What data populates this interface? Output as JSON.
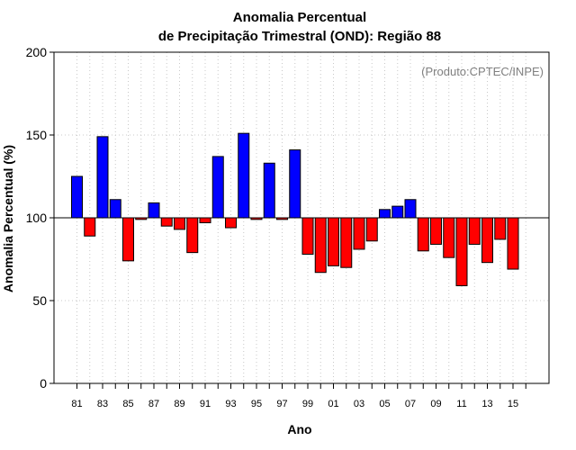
{
  "chart_data": {
    "type": "bar",
    "title_line1": "Anomalia Percentual",
    "title_line2": "de Precipitação Trimestral (OND): Região 88",
    "xlabel": "Ano",
    "ylabel": "Anomalia Percentual (%)",
    "credit": "(Produto:CPTEC/INPE)",
    "ylim": [
      0,
      200
    ],
    "yticks": [
      0,
      50,
      100,
      150,
      200
    ],
    "baseline": 100,
    "grid": true,
    "colors": {
      "above": "#0000ff",
      "below": "#ff0000",
      "edge": "#000000",
      "grid": "#c8c8c8"
    },
    "categories": [
      "81",
      "82",
      "83",
      "84",
      "85",
      "86",
      "87",
      "88",
      "89",
      "90",
      "91",
      "92",
      "93",
      "94",
      "95",
      "96",
      "97",
      "98",
      "99",
      "00",
      "01",
      "02",
      "03",
      "04",
      "05",
      "06",
      "07",
      "08",
      "09",
      "10",
      "11",
      "12",
      "13",
      "14",
      "15",
      "16"
    ],
    "xtick_labels": [
      "81",
      "83",
      "85",
      "87",
      "89",
      "91",
      "93",
      "95",
      "97",
      "99",
      "01",
      "03",
      "05",
      "07",
      "09",
      "11",
      "13",
      "15"
    ],
    "values": [
      125,
      89,
      149,
      111,
      74,
      99,
      109,
      95,
      93,
      79,
      97,
      137,
      94,
      151,
      99,
      133,
      99,
      141,
      78,
      67,
      71,
      70,
      81,
      86,
      105,
      107,
      111,
      80,
      84,
      76,
      59,
      84,
      73,
      87,
      69,
      null
    ]
  }
}
